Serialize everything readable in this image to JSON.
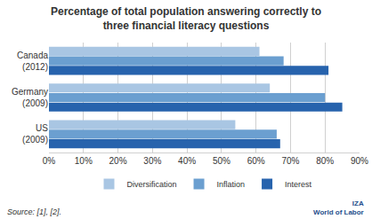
{
  "chart_data": {
    "type": "bar",
    "orientation": "horizontal",
    "title": "Percentage of total population answering correctly to\nthree financial literacy questions",
    "categories": [
      "Canada\n(2012)",
      "Germany\n(2009)",
      "US\n(2009)"
    ],
    "series": [
      {
        "name": "Diversification",
        "color": "#a9c6e3",
        "values": [
          61,
          64,
          54
        ]
      },
      {
        "name": "Inflation",
        "color": "#6b9fd0",
        "values": [
          68,
          80,
          66
        ]
      },
      {
        "name": "Interest",
        "color": "#2763ad",
        "values": [
          81,
          85,
          67
        ]
      }
    ],
    "xlim": [
      0,
      90
    ],
    "xticks": [
      {
        "value": 0,
        "label": "0%"
      },
      {
        "value": 10,
        "label": "10%"
      },
      {
        "value": 20,
        "label": "20%"
      },
      {
        "value": 30,
        "label": "30%"
      },
      {
        "value": 40,
        "label": "40%"
      },
      {
        "value": 50,
        "label": "50%"
      },
      {
        "value": 60,
        "label": "60%"
      },
      {
        "value": 70,
        "label": "70%"
      },
      {
        "value": 80,
        "label": "80%"
      },
      {
        "value": 90,
        "label": "90%"
      }
    ],
    "grid": true,
    "legend": "bottom",
    "data_labels": false,
    "annotations": [
      "Source: [1], [2].",
      "IZA\nWorld of Labor"
    ]
  }
}
